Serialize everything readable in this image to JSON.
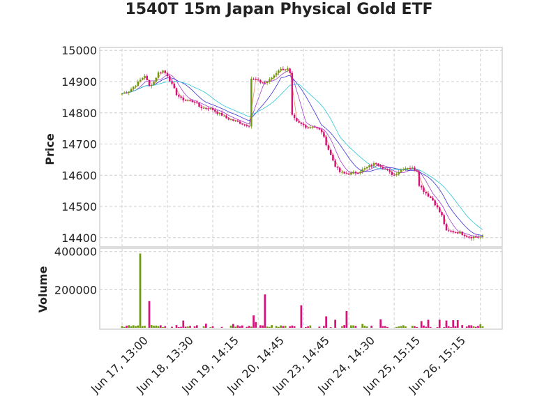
{
  "chart_data": {
    "type": "candlestick",
    "title": "1540T 15m Japan Physical Gold ETF",
    "price_panel": {
      "ylabel": "Price",
      "ylim": [
        14375,
        15005
      ],
      "yticks": [
        14400,
        14500,
        14600,
        14700,
        14800,
        14900,
        15000
      ],
      "grid": true
    },
    "volume_panel": {
      "ylabel": "Volume",
      "ylim": [
        0,
        410000
      ],
      "yticks": [
        200000,
        400000
      ],
      "grid": true
    },
    "x_tick_labels": [
      "Jun 17, 13:00",
      "Jun 18, 13:30",
      "Jun 19, 14:15",
      "Jun 20, 14:45",
      "Jun 23, 14:45",
      "Jun 24, 14:30",
      "Jun 25, 15:15",
      "Jun 26, 15:15"
    ],
    "x_tick_index": [
      0,
      20,
      40,
      60,
      80,
      100,
      120,
      140
    ],
    "colors": {
      "up": "#6f9a0f",
      "down": "#d4127a",
      "ma_orange": "#f08a6a",
      "ma_purple": "#a43cc8",
      "ma_blue": "#3a2fd8",
      "ma_cyan": "#2cc6d6"
    },
    "price_keypoints": [
      [
        0,
        14862
      ],
      [
        3,
        14870
      ],
      [
        6,
        14890
      ],
      [
        8,
        14905
      ],
      [
        10,
        14920
      ],
      [
        12,
        14885
      ],
      [
        14,
        14900
      ],
      [
        16,
        14928
      ],
      [
        18,
        14935
      ],
      [
        20,
        14920
      ],
      [
        22,
        14890
      ],
      [
        24,
        14860
      ],
      [
        26,
        14845
      ],
      [
        28,
        14840
      ],
      [
        30,
        14838
      ],
      [
        32,
        14835
      ],
      [
        34,
        14820
      ],
      [
        36,
        14815
      ],
      [
        38,
        14815
      ],
      [
        40,
        14810
      ],
      [
        42,
        14800
      ],
      [
        44,
        14793
      ],
      [
        46,
        14783
      ],
      [
        48,
        14778
      ],
      [
        50,
        14773
      ],
      [
        52,
        14768
      ],
      [
        54,
        14762
      ],
      [
        56,
        14760
      ],
      [
        57,
        14910
      ],
      [
        59,
        14905
      ],
      [
        61,
        14898
      ],
      [
        63,
        14895
      ],
      [
        65,
        14905
      ],
      [
        67,
        14920
      ],
      [
        69,
        14938
      ],
      [
        71,
        14940
      ],
      [
        73,
        14940
      ],
      [
        74,
        14925
      ],
      [
        75,
        14790
      ],
      [
        77,
        14770
      ],
      [
        80,
        14760
      ],
      [
        82,
        14752
      ],
      [
        84,
        14758
      ],
      [
        86,
        14750
      ],
      [
        88,
        14740
      ],
      [
        90,
        14700
      ],
      [
        92,
        14665
      ],
      [
        94,
        14630
      ],
      [
        96,
        14610
      ],
      [
        98,
        14605
      ],
      [
        100,
        14605
      ],
      [
        104,
        14610
      ],
      [
        108,
        14625
      ],
      [
        112,
        14640
      ],
      [
        114,
        14630
      ],
      [
        116,
        14620
      ],
      [
        118,
        14608
      ],
      [
        120,
        14600
      ],
      [
        122,
        14612
      ],
      [
        124,
        14622
      ],
      [
        126,
        14625
      ],
      [
        128,
        14622
      ],
      [
        130,
        14615
      ],
      [
        131,
        14570
      ],
      [
        133,
        14550
      ],
      [
        135,
        14535
      ],
      [
        137,
        14520
      ],
      [
        139,
        14495
      ],
      [
        141,
        14470
      ],
      [
        143,
        14420
      ],
      [
        145,
        14420
      ],
      [
        147,
        14418
      ],
      [
        149,
        14416
      ],
      [
        150,
        14412
      ],
      [
        152,
        14405
      ],
      [
        154,
        14402
      ],
      [
        157,
        14403
      ]
    ],
    "volume_spikes": [
      [
        8,
        390000
      ],
      [
        12,
        140000
      ],
      [
        27,
        38000
      ],
      [
        37,
        22000
      ],
      [
        49,
        20000
      ],
      [
        58,
        65000
      ],
      [
        59,
        30000
      ],
      [
        63,
        175000
      ],
      [
        79,
        118000
      ],
      [
        90,
        60000
      ],
      [
        94,
        42000
      ],
      [
        99,
        88000
      ],
      [
        106,
        20000
      ],
      [
        114,
        44000
      ],
      [
        132,
        35000
      ],
      [
        135,
        42000
      ],
      [
        140,
        42000
      ],
      [
        143,
        38000
      ],
      [
        146,
        40000
      ],
      [
        148,
        40000
      ],
      [
        158,
        18000
      ]
    ],
    "volume_base": 8000,
    "n_candles": 160
  }
}
